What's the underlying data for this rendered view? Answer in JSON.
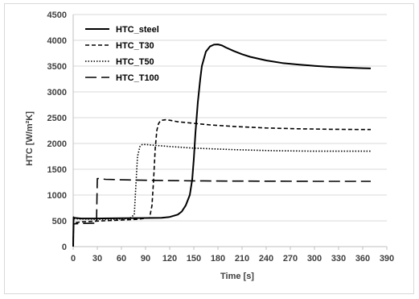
{
  "chart_data": {
    "type": "line",
    "title": "",
    "xlabel": "Time [s]",
    "ylabel": "HTC [W/m²K]",
    "xlim": [
      0,
      390
    ],
    "ylim": [
      0,
      4500
    ],
    "xticks": [
      0,
      30,
      60,
      90,
      120,
      150,
      180,
      210,
      240,
      270,
      300,
      330,
      360,
      390
    ],
    "yticks": [
      0,
      500,
      1000,
      1500,
      2000,
      2500,
      3000,
      3500,
      4000,
      4500
    ],
    "grid": "horizontal",
    "legend_position": "top-left",
    "series": [
      {
        "name": "HTC_steel",
        "style": "solid",
        "x": [
          0,
          0.5,
          1,
          10,
          30,
          60,
          90,
          110,
          120,
          130,
          135,
          140,
          145,
          148,
          150,
          152,
          155,
          158,
          160,
          165,
          170,
          175,
          180,
          185,
          190,
          200,
          210,
          220,
          240,
          260,
          280,
          300,
          320,
          340,
          360,
          370
        ],
        "y": [
          0,
          570,
          560,
          545,
          545,
          550,
          555,
          560,
          575,
          620,
          680,
          800,
          1000,
          1300,
          1700,
          2200,
          2800,
          3250,
          3500,
          3780,
          3880,
          3915,
          3920,
          3900,
          3860,
          3790,
          3730,
          3680,
          3610,
          3560,
          3530,
          3505,
          3485,
          3470,
          3460,
          3455
        ]
      },
      {
        "name": "HTC_T30",
        "style": "dashed",
        "x": [
          0,
          0.5,
          10,
          30,
          60,
          80,
          95,
          98,
          100,
          102,
          104,
          106,
          108,
          110,
          115,
          120,
          130,
          150,
          170,
          200,
          240,
          280,
          320,
          360,
          370
        ],
        "y": [
          0,
          460,
          480,
          495,
          515,
          530,
          560,
          800,
          1300,
          1900,
          2250,
          2380,
          2430,
          2450,
          2460,
          2450,
          2420,
          2390,
          2360,
          2330,
          2300,
          2285,
          2275,
          2270,
          2270
        ]
      },
      {
        "name": "HTC_T50",
        "style": "dotted",
        "x": [
          0,
          0.5,
          10,
          30,
          50,
          70,
          76,
          78,
          80,
          83,
          86,
          90,
          100,
          120,
          150,
          200,
          250,
          300,
          350,
          370
        ],
        "y": [
          0,
          540,
          535,
          530,
          530,
          545,
          620,
          1200,
          1750,
          1940,
          1980,
          1980,
          1965,
          1940,
          1910,
          1880,
          1860,
          1850,
          1850,
          1850
        ]
      },
      {
        "name": "HTC_T100",
        "style": "long-dash",
        "x": [
          0,
          0.5,
          10,
          29,
          30,
          31,
          40,
          60,
          100,
          150,
          200,
          250,
          300,
          350,
          370
        ],
        "y": [
          0,
          440,
          450,
          455,
          1320,
          1320,
          1305,
          1295,
          1285,
          1275,
          1270,
          1268,
          1265,
          1265,
          1265
        ]
      }
    ]
  }
}
